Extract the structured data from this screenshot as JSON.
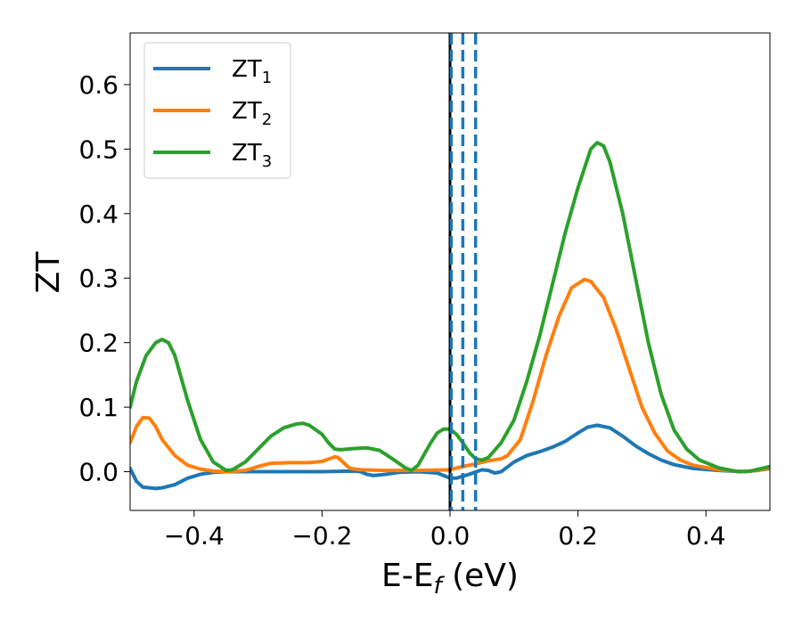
{
  "chart_data": {
    "type": "line",
    "xlabel": {
      "main": "E-E",
      "sub": "f",
      "unit": " (eV)"
    },
    "ylabel": "ZT",
    "xlim": [
      -0.5,
      0.5
    ],
    "ylim": [
      -0.06,
      0.68
    ],
    "x_ticks": [
      {
        "value": -0.4,
        "label": "−0.4"
      },
      {
        "value": -0.2,
        "label": "−0.2"
      },
      {
        "value": 0.0,
        "label": "0.0"
      },
      {
        "value": 0.2,
        "label": "0.2"
      },
      {
        "value": 0.4,
        "label": "0.4"
      }
    ],
    "y_ticks": [
      {
        "value": 0.0,
        "label": "0.0"
      },
      {
        "value": 0.1,
        "label": "0.1"
      },
      {
        "value": 0.2,
        "label": "0.2"
      },
      {
        "value": 0.3,
        "label": "0.3"
      },
      {
        "value": 0.4,
        "label": "0.4"
      },
      {
        "value": 0.5,
        "label": "0.5"
      },
      {
        "value": 0.6,
        "label": "0.6"
      }
    ],
    "grid": false,
    "legend": {
      "position": "top-left"
    },
    "series": [
      {
        "name": "ZT",
        "subscript": "1",
        "color": "#1f77b4",
        "points": [
          [
            -0.5,
            0.005
          ],
          [
            -0.49,
            -0.015
          ],
          [
            -0.48,
            -0.024
          ],
          [
            -0.46,
            -0.026
          ],
          [
            -0.45,
            -0.025
          ],
          [
            -0.43,
            -0.02
          ],
          [
            -0.41,
            -0.01
          ],
          [
            -0.39,
            -0.004
          ],
          [
            -0.37,
            -0.001
          ],
          [
            -0.35,
            0.0
          ],
          [
            -0.3,
            0.0
          ],
          [
            -0.2,
            0.0
          ],
          [
            -0.15,
            0.001
          ],
          [
            -0.14,
            0.0
          ],
          [
            -0.13,
            -0.004
          ],
          [
            -0.12,
            -0.006
          ],
          [
            -0.1,
            -0.004
          ],
          [
            -0.08,
            -0.001
          ],
          [
            -0.05,
            0.0
          ],
          [
            -0.02,
            -0.002
          ],
          [
            0.0,
            -0.01
          ],
          [
            0.01,
            -0.01
          ],
          [
            0.03,
            -0.004
          ],
          [
            0.05,
            0.003
          ],
          [
            0.06,
            0.002
          ],
          [
            0.07,
            -0.002
          ],
          [
            0.08,
            0.0
          ],
          [
            0.1,
            0.015
          ],
          [
            0.12,
            0.025
          ],
          [
            0.14,
            0.031
          ],
          [
            0.16,
            0.038
          ],
          [
            0.18,
            0.047
          ],
          [
            0.2,
            0.06
          ],
          [
            0.215,
            0.069
          ],
          [
            0.23,
            0.072
          ],
          [
            0.25,
            0.068
          ],
          [
            0.27,
            0.055
          ],
          [
            0.29,
            0.04
          ],
          [
            0.31,
            0.028
          ],
          [
            0.33,
            0.018
          ],
          [
            0.35,
            0.011
          ],
          [
            0.38,
            0.005
          ],
          [
            0.42,
            0.002
          ],
          [
            0.46,
            0.0
          ],
          [
            0.48,
            0.002
          ],
          [
            0.5,
            0.005
          ]
        ]
      },
      {
        "name": "ZT",
        "subscript": "2",
        "color": "#ff7f0e",
        "points": [
          [
            -0.5,
            0.045
          ],
          [
            -0.49,
            0.07
          ],
          [
            -0.48,
            0.084
          ],
          [
            -0.47,
            0.083
          ],
          [
            -0.46,
            0.07
          ],
          [
            -0.45,
            0.05
          ],
          [
            -0.43,
            0.025
          ],
          [
            -0.41,
            0.01
          ],
          [
            -0.39,
            0.004
          ],
          [
            -0.37,
            0.001
          ],
          [
            -0.35,
            0.0
          ],
          [
            -0.32,
            0.002
          ],
          [
            -0.3,
            0.008
          ],
          [
            -0.28,
            0.013
          ],
          [
            -0.25,
            0.014
          ],
          [
            -0.22,
            0.014
          ],
          [
            -0.2,
            0.016
          ],
          [
            -0.18,
            0.023
          ],
          [
            -0.175,
            0.022
          ],
          [
            -0.16,
            0.008
          ],
          [
            -0.155,
            0.005
          ],
          [
            -0.14,
            0.003
          ],
          [
            -0.1,
            0.002
          ],
          [
            -0.05,
            0.002
          ],
          [
            0.0,
            0.003
          ],
          [
            0.02,
            0.008
          ],
          [
            0.04,
            0.012
          ],
          [
            0.06,
            0.017
          ],
          [
            0.08,
            0.02
          ],
          [
            0.09,
            0.025
          ],
          [
            0.11,
            0.05
          ],
          [
            0.13,
            0.11
          ],
          [
            0.15,
            0.18
          ],
          [
            0.17,
            0.24
          ],
          [
            0.19,
            0.285
          ],
          [
            0.21,
            0.298
          ],
          [
            0.22,
            0.295
          ],
          [
            0.24,
            0.27
          ],
          [
            0.26,
            0.22
          ],
          [
            0.28,
            0.16
          ],
          [
            0.3,
            0.1
          ],
          [
            0.32,
            0.06
          ],
          [
            0.34,
            0.032
          ],
          [
            0.36,
            0.018
          ],
          [
            0.38,
            0.01
          ],
          [
            0.42,
            0.003
          ],
          [
            0.46,
            0.0
          ],
          [
            0.48,
            0.002
          ],
          [
            0.5,
            0.006
          ]
        ]
      },
      {
        "name": "ZT",
        "subscript": "3",
        "color": "#2ca02c",
        "points": [
          [
            -0.5,
            0.1
          ],
          [
            -0.49,
            0.14
          ],
          [
            -0.475,
            0.18
          ],
          [
            -0.46,
            0.2
          ],
          [
            -0.45,
            0.205
          ],
          [
            -0.44,
            0.2
          ],
          [
            -0.43,
            0.18
          ],
          [
            -0.41,
            0.11
          ],
          [
            -0.39,
            0.05
          ],
          [
            -0.37,
            0.015
          ],
          [
            -0.35,
            0.002
          ],
          [
            -0.34,
            0.003
          ],
          [
            -0.32,
            0.015
          ],
          [
            -0.3,
            0.035
          ],
          [
            -0.28,
            0.055
          ],
          [
            -0.26,
            0.068
          ],
          [
            -0.24,
            0.074
          ],
          [
            -0.23,
            0.075
          ],
          [
            -0.22,
            0.072
          ],
          [
            -0.2,
            0.058
          ],
          [
            -0.19,
            0.045
          ],
          [
            -0.18,
            0.035
          ],
          [
            -0.17,
            0.034
          ],
          [
            -0.15,
            0.036
          ],
          [
            -0.13,
            0.037
          ],
          [
            -0.11,
            0.033
          ],
          [
            -0.09,
            0.02
          ],
          [
            -0.07,
            0.006
          ],
          [
            -0.06,
            0.002
          ],
          [
            -0.05,
            0.01
          ],
          [
            -0.03,
            0.045
          ],
          [
            -0.02,
            0.06
          ],
          [
            -0.01,
            0.066
          ],
          [
            0.0,
            0.066
          ],
          [
            0.01,
            0.058
          ],
          [
            0.02,
            0.045
          ],
          [
            0.03,
            0.03
          ],
          [
            0.04,
            0.02
          ],
          [
            0.05,
            0.018
          ],
          [
            0.06,
            0.022
          ],
          [
            0.08,
            0.045
          ],
          [
            0.1,
            0.08
          ],
          [
            0.12,
            0.14
          ],
          [
            0.14,
            0.21
          ],
          [
            0.16,
            0.29
          ],
          [
            0.18,
            0.37
          ],
          [
            0.2,
            0.44
          ],
          [
            0.22,
            0.5
          ],
          [
            0.23,
            0.51
          ],
          [
            0.24,
            0.505
          ],
          [
            0.25,
            0.48
          ],
          [
            0.27,
            0.4
          ],
          [
            0.29,
            0.3
          ],
          [
            0.31,
            0.2
          ],
          [
            0.33,
            0.12
          ],
          [
            0.35,
            0.065
          ],
          [
            0.37,
            0.035
          ],
          [
            0.39,
            0.018
          ],
          [
            0.42,
            0.006
          ],
          [
            0.45,
            0.0
          ],
          [
            0.47,
            0.001
          ],
          [
            0.5,
            0.008
          ]
        ]
      }
    ],
    "vertical_lines": [
      {
        "x": 0.0,
        "color": "#000000",
        "style": "solid"
      },
      {
        "x": 0.002,
        "color": "#1f77b4",
        "style": "dashed"
      },
      {
        "x": 0.02,
        "color": "#1f77b4",
        "style": "dashed"
      },
      {
        "x": 0.04,
        "color": "#1f77b4",
        "style": "dashed"
      }
    ]
  }
}
